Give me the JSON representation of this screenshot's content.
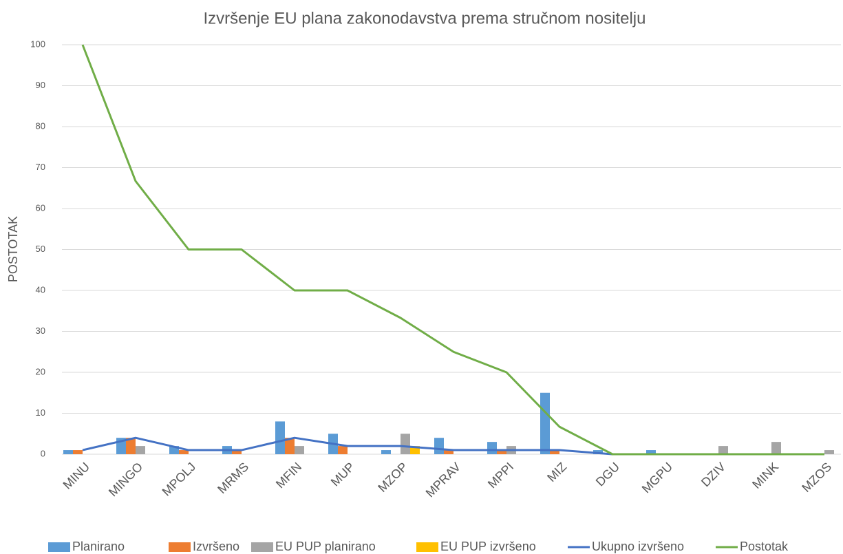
{
  "chart_data": {
    "type": "bar",
    "title": "Izvršenje EU plana zakonodavstva prema stručnom nositelju",
    "y_label": "POSTOTAK",
    "categories": [
      "MINU",
      "MINGO",
      "MPOLJ",
      "MRMS",
      "MFIN",
      "MUP",
      "MZOP",
      "MPRAV",
      "MPPI",
      "MIZ",
      "DGU",
      "MGPU",
      "DZIV",
      "MINK",
      "MZOS"
    ],
    "series": [
      {
        "name": "Planirano",
        "color": "#5b9bd5",
        "type": "bar",
        "values": [
          1,
          4,
          2,
          2,
          8,
          5,
          1,
          4,
          3,
          15,
          1,
          1,
          0,
          0,
          0
        ]
      },
      {
        "name": "Izvršeno",
        "color": "#ed7d31",
        "type": "bar",
        "values": [
          1,
          4,
          1,
          1,
          4,
          2,
          0,
          1,
          1,
          1,
          0,
          0,
          0,
          0,
          0
        ]
      },
      {
        "name": "EU PUP planirano",
        "color": "#a5a5a5",
        "type": "bar",
        "values": [
          0,
          2,
          0,
          0,
          2,
          0,
          5,
          0,
          2,
          0,
          0,
          0,
          2,
          3,
          1
        ]
      },
      {
        "name": "EU PUP izvršeno",
        "color": "#ffc000",
        "type": "bar",
        "values": [
          0,
          0,
          0,
          0,
          0,
          0,
          2,
          0,
          0,
          0,
          0,
          0,
          0,
          0,
          0
        ]
      },
      {
        "name": "Ukupno izvršeno",
        "color": "#4472c4",
        "type": "line",
        "values": [
          1,
          4,
          1,
          1,
          4,
          2,
          2,
          1,
          1,
          1,
          0,
          0,
          0,
          0,
          0
        ]
      },
      {
        "name": "Postotak",
        "color": "#70ad47",
        "type": "line",
        "values": [
          100,
          66.7,
          50,
          50,
          40,
          40,
          33.3,
          25,
          20,
          6.7,
          0,
          0,
          0,
          0,
          0
        ]
      }
    ],
    "ylim": [
      0,
      100
    ],
    "yticks": [
      0,
      10,
      20,
      30,
      40,
      50,
      60,
      70,
      80,
      90,
      100
    ],
    "grid": true,
    "legend": "bottom"
  }
}
